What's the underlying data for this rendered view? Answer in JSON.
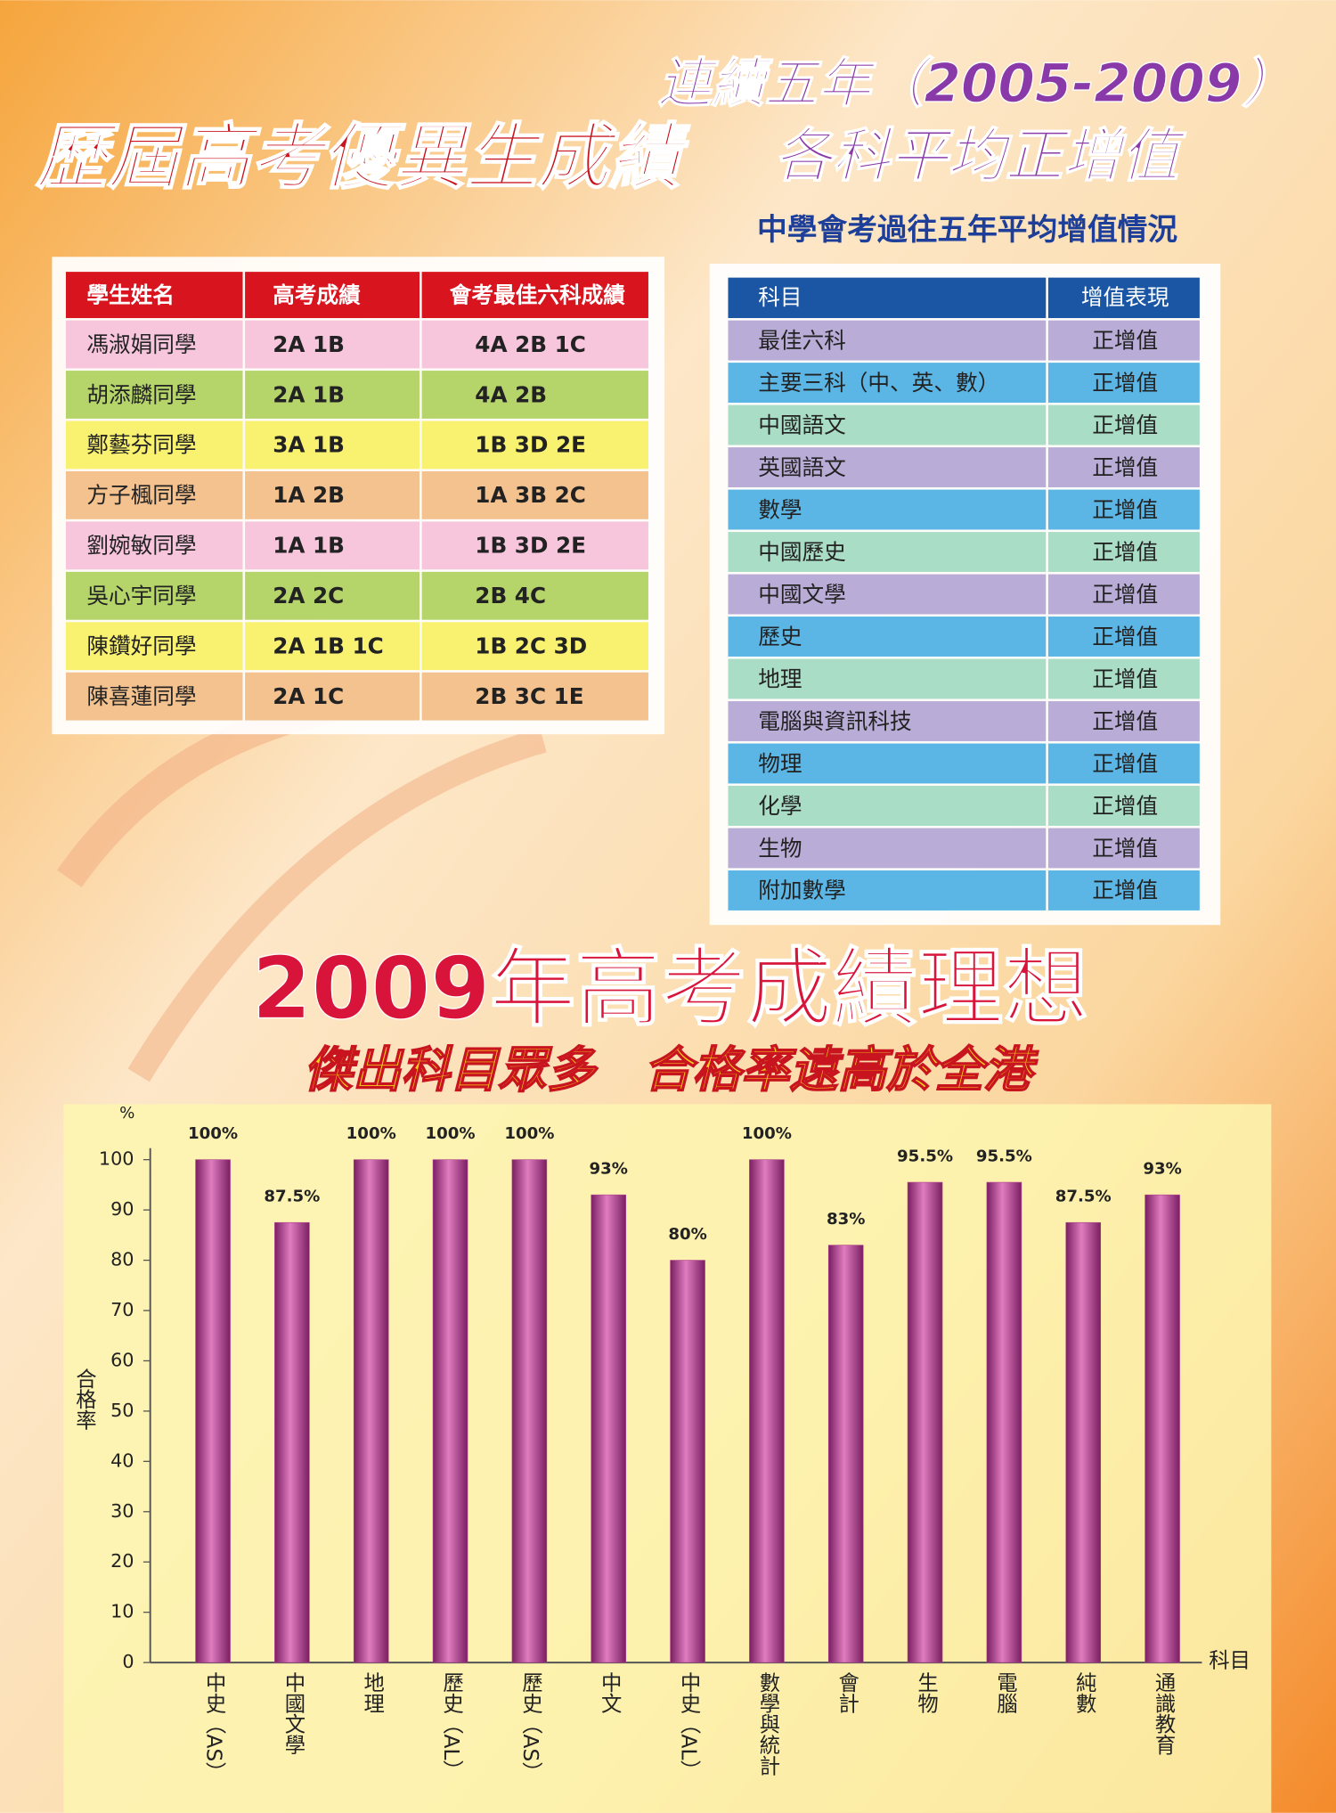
{
  "left_panel": {
    "title": "歷屆高考優異生成績",
    "headers": [
      "學生姓名",
      "高考成績",
      "會考最佳六科成績"
    ],
    "rows": [
      [
        "馮淑娟同學",
        "2A 1B",
        "4A 2B 1C"
      ],
      [
        "胡添麟同學",
        "2A 1B",
        "4A 2B"
      ],
      [
        "鄭藝芬同學",
        "3A 1B",
        "1B 3D 2E"
      ],
      [
        "方子楓同學",
        "1A 2B",
        "1A 3B 2C"
      ],
      [
        "劉婉敏同學",
        "1A 1B",
        "1B 3D 2E"
      ],
      [
        "吳心宇同學",
        "2A 2C",
        "2B 4C"
      ],
      [
        "陳鑽好同學",
        "2A 1B 1C",
        "1B 2C 3D"
      ],
      [
        "陳喜蓮同學",
        "2A 1C",
        "2B 3C 1E"
      ]
    ]
  },
  "right_panel": {
    "title_lines": [
      "連續五年（2005-2009）",
      "各科平均正增值"
    ],
    "subtitle": "中學會考過往五年平均增值情況",
    "headers": [
      "科目",
      "增值表現"
    ],
    "rows": [
      [
        "最佳六科",
        "正增值"
      ],
      [
        "主要三科（中、英、數）",
        "正增值"
      ],
      [
        "中國語文",
        "正增值"
      ],
      [
        "英國語文",
        "正增值"
      ],
      [
        "數學",
        "正增值"
      ],
      [
        "中國歷史",
        "正增值"
      ],
      [
        "中國文學",
        "正增值"
      ],
      [
        "歷史",
        "正增值"
      ],
      [
        "地理",
        "正增值"
      ],
      [
        "電腦與資訊科技",
        "正增值"
      ],
      [
        "物理",
        "正增值"
      ],
      [
        "化學",
        "正增值"
      ],
      [
        "生物",
        "正增值"
      ],
      [
        "附加數學",
        "正增值"
      ]
    ]
  },
  "banner": {
    "title": "2009年高考成績理想",
    "subtitle": "傑出科目眾多　合格率遠高於全港"
  },
  "chart_data": {
    "type": "bar",
    "y_label": "合格率",
    "y_unit": "%",
    "x_label": "科目",
    "categories": [
      "中史（AS）",
      "中國文學",
      "地理",
      "歷史（AL）",
      "歷史（AS）",
      "中文",
      "中史（AL）",
      "數學與統計",
      "會計",
      "生物",
      "電腦",
      "純數",
      "通識教育"
    ],
    "values": [
      100,
      87.5,
      100,
      100,
      100,
      93,
      80,
      100,
      83,
      95.5,
      95.5,
      87.5,
      93
    ],
    "value_labels": [
      "100%",
      "87.5%",
      "100%",
      "100%",
      "100%",
      "93%",
      "80%",
      "100%",
      "83%",
      "95.5%",
      "95.5%",
      "87.5%",
      "93%"
    ],
    "color": "#b0458e",
    "ylim": [
      0,
      100
    ],
    "yticks": [
      0,
      10,
      20,
      30,
      40,
      50,
      60,
      70,
      80,
      90,
      100
    ]
  }
}
